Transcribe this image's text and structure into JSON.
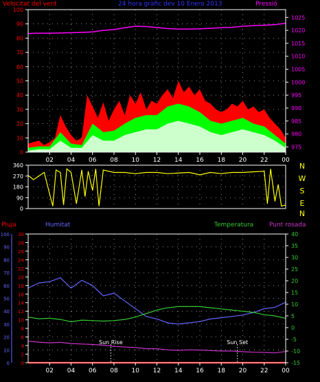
{
  "colors": {
    "wind_gust": "#ff0000",
    "wind_avg": "#00ff00",
    "wind_min": "#ccffcc",
    "pressure": "#ff00ff",
    "direction": "#ffff00",
    "rain": "#ff0000",
    "humidity": "#6666ff",
    "temperature": "#33cc33",
    "dewpoint": "#cc33cc",
    "axis": "#ffffff",
    "grid": "#ffffff"
  },
  "header": {
    "wind_label": "Velocitat del vent",
    "title": "24 hora gràfic dev  10 Enero 2013",
    "pressure_label": "Pressió"
  },
  "lower_header": {
    "rain_label": "Pluja",
    "humidity_label": "Humitat",
    "temperature_label": "Temperatura",
    "dewpoint_label": "Punt rosada"
  },
  "annotations": {
    "sunrise": "Sun Rise",
    "sunset": "Sun Set"
  },
  "chart_data": [
    {
      "type": "area",
      "x_ticks": [
        "02",
        "04",
        "06",
        "08",
        "10",
        "12",
        "14",
        "16",
        "18",
        "20",
        "22",
        "00"
      ],
      "x_range_hours": [
        0,
        24
      ],
      "y_left_ticks": [
        "0",
        "10",
        "20",
        "30",
        "40",
        "50",
        "60",
        "70",
        "80",
        "90",
        "100"
      ],
      "y_left_range": [
        0,
        100
      ],
      "y_right_ticks": [
        "975",
        "980",
        "985",
        "990",
        "995",
        "1000",
        "1005",
        "1010",
        "1015",
        "1020",
        "1025"
      ],
      "y_right_range": [
        973,
        1028
      ],
      "grid": true,
      "series": [
        {
          "name": "Velocitat del vent",
          "role": "gust",
          "axis": "left",
          "x": [
            0,
            1,
            1.5,
            2,
            2.5,
            3,
            3.5,
            4,
            4.5,
            5,
            5.5,
            6,
            6.5,
            7,
            7.5,
            8,
            8.5,
            9,
            9.5,
            10,
            10.5,
            11,
            11.5,
            12,
            12.5,
            13,
            13.5,
            14,
            14.5,
            15,
            15.5,
            16,
            16.5,
            17,
            17.5,
            18,
            18.5,
            19,
            19.5,
            20,
            20.5,
            21,
            21.5,
            22,
            22.5,
            23,
            23.5,
            24
          ],
          "values": [
            6,
            8,
            5,
            7,
            10,
            26,
            18,
            12,
            8,
            10,
            40,
            32,
            24,
            35,
            22,
            30,
            36,
            26,
            40,
            34,
            42,
            30,
            36,
            34,
            40,
            44,
            38,
            50,
            42,
            46,
            40,
            44,
            36,
            34,
            30,
            28,
            30,
            34,
            32,
            36,
            30,
            32,
            28,
            30,
            24,
            20,
            16,
            10
          ]
        },
        {
          "name": "Velocitat del vent",
          "role": "average",
          "axis": "left",
          "x": [
            0,
            1,
            2,
            3,
            4,
            5,
            6,
            7,
            8,
            9,
            10,
            11,
            12,
            13,
            14,
            15,
            16,
            17,
            18,
            19,
            20,
            21,
            22,
            23,
            24
          ],
          "values": [
            3,
            4,
            4,
            14,
            6,
            5,
            20,
            14,
            15,
            20,
            24,
            26,
            26,
            32,
            34,
            32,
            28,
            22,
            20,
            22,
            24,
            20,
            18,
            12,
            6
          ]
        },
        {
          "name": "Velocitat del vent",
          "role": "minimum",
          "axis": "left",
          "x": [
            0,
            1,
            2,
            3,
            4,
            5,
            6,
            7,
            8,
            9,
            10,
            11,
            12,
            13,
            14,
            15,
            16,
            17,
            18,
            19,
            20,
            21,
            22,
            23,
            24
          ],
          "values": [
            1,
            2,
            2,
            8,
            3,
            3,
            12,
            8,
            8,
            12,
            14,
            16,
            16,
            20,
            22,
            20,
            18,
            14,
            12,
            14,
            16,
            14,
            12,
            8,
            3
          ]
        },
        {
          "name": "Pressió",
          "role": "pressure",
          "axis": "right",
          "x": [
            0,
            1,
            2,
            3,
            4,
            5,
            6,
            7,
            8,
            9,
            10,
            11,
            12,
            13,
            14,
            15,
            16,
            17,
            18,
            19,
            20,
            21,
            22,
            23,
            24
          ],
          "values": [
            1018.8,
            1018.9,
            1018.9,
            1019.0,
            1019.1,
            1019.2,
            1019.4,
            1020.0,
            1020.3,
            1021.0,
            1021.6,
            1021.5,
            1021.1,
            1020.7,
            1020.5,
            1020.5,
            1020.6,
            1020.8,
            1021.0,
            1021.2,
            1021.6,
            1021.8,
            1022.0,
            1022.2,
            1022.7
          ]
        }
      ]
    },
    {
      "type": "line",
      "x_range_hours": [
        0,
        24
      ],
      "y_left_ticks": [
        "0",
        "90",
        "180",
        "270",
        "360"
      ],
      "y_left_range": [
        0,
        360
      ],
      "y_right_ticks": [
        "N",
        "W",
        "S",
        "E",
        "N"
      ],
      "grid": true,
      "series": [
        {
          "role": "direction",
          "x": [
            0,
            0.5,
            1,
            1.5,
            2,
            2.3,
            2.6,
            3,
            3.3,
            3.6,
            4,
            4.5,
            5,
            5.3,
            5.6,
            6,
            6.3,
            6.6,
            7,
            7.5,
            8,
            9,
            10,
            11,
            12,
            13,
            14,
            15,
            16,
            17,
            18,
            19,
            20,
            21,
            22,
            22.3,
            22.6,
            23,
            23.3,
            23.6,
            24
          ],
          "values": [
            275,
            240,
            270,
            300,
            120,
            20,
            320,
            300,
            30,
            330,
            300,
            40,
            320,
            100,
            310,
            150,
            330,
            20,
            320,
            310,
            300,
            300,
            290,
            300,
            300,
            290,
            295,
            300,
            280,
            300,
            290,
            300,
            300,
            305,
            310,
            40,
            330,
            60,
            200,
            20,
            30
          ]
        }
      ]
    },
    {
      "type": "line",
      "x_ticks": [
        "02",
        "04",
        "06",
        "08",
        "10",
        "12",
        "14",
        "16",
        "18",
        "20",
        "22",
        "00"
      ],
      "x_range_hours": [
        0,
        24
      ],
      "y_left_ticks": [
        "0",
        "10",
        "20",
        "30",
        "40",
        "50",
        "60",
        "70",
        "80",
        "90",
        "100"
      ],
      "y_left_range": [
        0,
        100
      ],
      "y_rain_ticks": [
        "0",
        "2",
        "4",
        "6",
        "8",
        "10",
        "12",
        "14",
        "16",
        "18",
        "20",
        "22",
        "24",
        "26",
        "28",
        "30"
      ],
      "y_rain_range": [
        0,
        30
      ],
      "y_right_ticks": [
        "-15",
        "-10",
        "-5",
        "0",
        "5",
        "10",
        "15",
        "20",
        "25",
        "30",
        "35",
        "40"
      ],
      "y_right_range": [
        -15,
        40
      ],
      "grid": true,
      "series": [
        {
          "name": "Humitat",
          "role": "humidity",
          "axis": "left",
          "x": [
            0,
            1,
            2,
            3,
            4,
            5,
            6,
            7,
            8,
            9,
            10,
            11,
            12,
            13,
            14,
            15,
            16,
            17,
            18,
            19,
            20,
            21,
            22,
            23,
            24
          ],
          "values": [
            58,
            62,
            63,
            66,
            58,
            64,
            60,
            52,
            54,
            48,
            42,
            36,
            34,
            31,
            30,
            31,
            32,
            34,
            35,
            36,
            37,
            39,
            42,
            43,
            47
          ]
        },
        {
          "name": "Temperatura",
          "role": "temperature",
          "axis": "right",
          "x": [
            0,
            1,
            2,
            3,
            4,
            5,
            6,
            7,
            8,
            9,
            10,
            11,
            12,
            13,
            14,
            15,
            16,
            17,
            18,
            19,
            20,
            21,
            22,
            23,
            24
          ],
          "values": [
            4.5,
            3.8,
            4.0,
            3.5,
            2.5,
            3.2,
            3.0,
            2.8,
            3.0,
            3.5,
            4.5,
            6.0,
            7.5,
            8.5,
            9.0,
            9.0,
            9.0,
            8.5,
            8.0,
            7.5,
            7.0,
            6.5,
            5.5,
            5.0,
            4.0
          ]
        },
        {
          "name": "Punt rosada",
          "role": "dewpoint",
          "axis": "right",
          "x": [
            0,
            1,
            2,
            3,
            4,
            5,
            6,
            7,
            8,
            9,
            10,
            11,
            12,
            13,
            14,
            15,
            16,
            17,
            18,
            19,
            20,
            21,
            22,
            23,
            24
          ],
          "values": [
            -5.8,
            -6.2,
            -6.5,
            -6.3,
            -6.8,
            -7.0,
            -7.2,
            -7.5,
            -8.0,
            -8.3,
            -8.5,
            -9.0,
            -9.0,
            -9.5,
            -9.7,
            -9.5,
            -9.6,
            -9.8,
            -10.0,
            -10.0,
            -10.3,
            -10.5,
            -10.6,
            -10.8,
            -10.2
          ]
        },
        {
          "name": "Pluja",
          "role": "rain",
          "axis": "rain",
          "x": [
            0,
            24
          ],
          "values": [
            0,
            0
          ]
        }
      ],
      "markers": [
        {
          "label": "Sun Rise",
          "x": 7.7
        },
        {
          "label": "Sun Set",
          "x": 19.5
        }
      ]
    }
  ]
}
